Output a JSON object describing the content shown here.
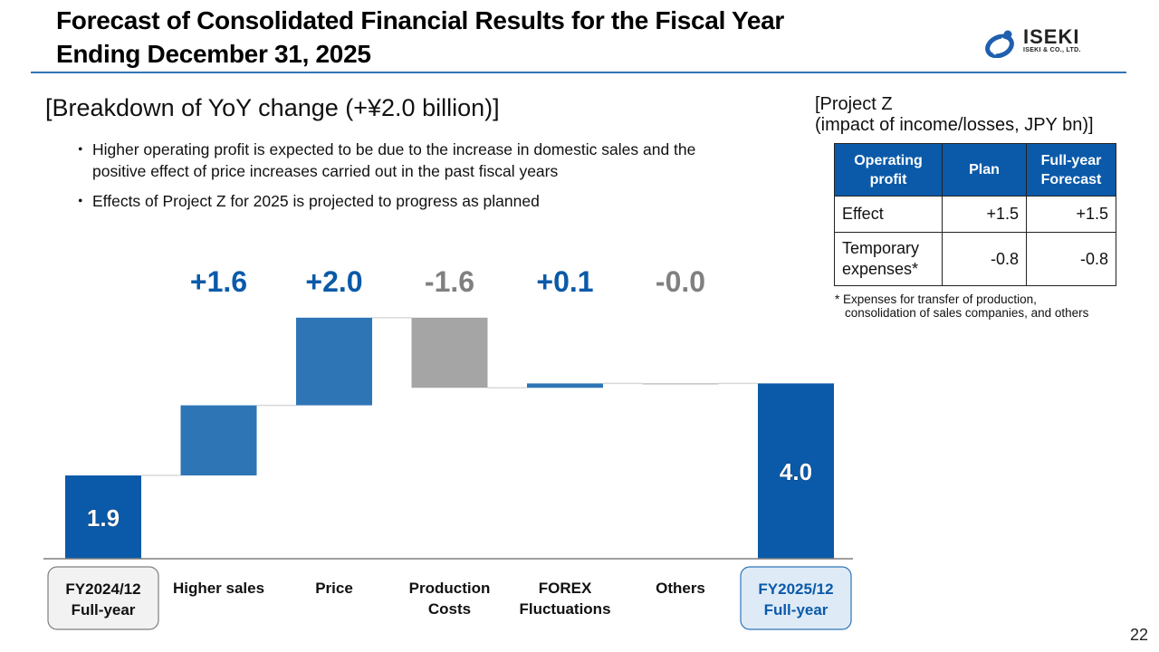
{
  "page": {
    "title_line1": "Forecast of Consolidated Financial Results for the Fiscal Year",
    "title_line2": "Ending December 31, 2025",
    "page_number": "22",
    "accent_color": "#2e74b5"
  },
  "logo": {
    "brand": "ISEKI",
    "company": "ISEKI & CO., LTD."
  },
  "breakdown": {
    "heading": "[Breakdown of YoY change (+¥2.0 billion)]",
    "bullets": [
      "Higher operating profit is expected to be due to the increase in domestic sales and the positive effect of price increases carried out in the past fiscal years",
      "Effects of Project Z for 2025 is projected to progress as planned"
    ],
    "bullet_glyph": "・"
  },
  "project_z": {
    "title_line1": "[Project Z",
    "title_line2": "(impact of income/losses, JPY bn)]",
    "headers": [
      "Operating profit",
      "Plan",
      "Full-year Forecast"
    ],
    "rows": [
      {
        "label": "Effect",
        "plan": "+1.5",
        "forecast": "+1.5"
      },
      {
        "label": "Temporary expenses*",
        "plan": "-0.8",
        "forecast": "-0.8"
      }
    ],
    "note_line1": "* Expenses for transfer of production,",
    "note_line2": "consolidation of sales companies, and others",
    "header_color": "#0b5aa9"
  },
  "chart_data": {
    "type": "bar",
    "subtype": "waterfall",
    "title": "",
    "xlabel": "",
    "ylabel": "",
    "unit": "JPY billion",
    "ylim": [
      0,
      5.6
    ],
    "grid": false,
    "legend": "none",
    "categories": [
      "FY2024/12 Full-year",
      "Higher sales",
      "Price",
      "Production Costs",
      "FOREX Fluctuations",
      "Others",
      "FY2025/12 Full-year"
    ],
    "category_lines": [
      [
        "FY2024/12",
        "Full-year"
      ],
      [
        "Higher sales"
      ],
      [
        "Price"
      ],
      [
        "Production",
        "Costs"
      ],
      [
        "FOREX",
        "Fluctuations"
      ],
      [
        "Others"
      ],
      [
        "FY2025/12",
        "Full-year"
      ]
    ],
    "kinds": [
      "total",
      "delta",
      "delta",
      "delta",
      "delta",
      "delta",
      "total"
    ],
    "values": [
      1.9,
      1.6,
      2.0,
      -1.6,
      0.1,
      -0.0,
      4.0
    ],
    "labels": [
      "1.9",
      "+1.6",
      "+2.0",
      "-1.6",
      "+0.1",
      "-0.0",
      "4.0"
    ],
    "colors": {
      "total": "#0b5aa9",
      "increase": "#2e75b6",
      "decrease": "#a5a5a5",
      "label_increase": "#0b5aa9",
      "label_decrease": "#808080",
      "start_box_fill": "#f2f2f2",
      "start_box_border": "#7f7f7f",
      "end_box_fill": "#deebf7",
      "end_box_border": "#2e75b6",
      "end_label": "#0b5aa9"
    }
  }
}
